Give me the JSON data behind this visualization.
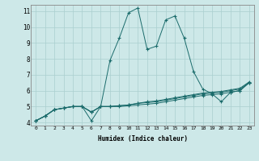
{
  "xlabel": "Humidex (Indice chaleur)",
  "ylabel": "",
  "bg_color": "#cde8e8",
  "line_color": "#1a6b6b",
  "grid_color": "#aacfcf",
  "xmin": -0.5,
  "xmax": 23.5,
  "ymin": 3.8,
  "ymax": 11.4,
  "xticks": [
    0,
    1,
    2,
    3,
    4,
    5,
    6,
    7,
    8,
    9,
    10,
    11,
    12,
    13,
    14,
    15,
    16,
    17,
    18,
    19,
    20,
    21,
    22,
    23
  ],
  "yticks": [
    4,
    5,
    6,
    7,
    8,
    9,
    10,
    11
  ],
  "series": [
    [
      4.1,
      4.4,
      4.8,
      4.9,
      5.0,
      5.0,
      4.1,
      5.0,
      7.9,
      9.3,
      10.9,
      11.2,
      8.6,
      8.8,
      10.45,
      10.7,
      9.3,
      7.2,
      6.1,
      5.8,
      5.3,
      5.9,
      6.0,
      6.5
    ],
    [
      4.1,
      4.4,
      4.8,
      4.9,
      5.0,
      5.0,
      4.65,
      5.0,
      5.0,
      5.0,
      5.05,
      5.1,
      5.15,
      5.2,
      5.3,
      5.4,
      5.5,
      5.6,
      5.7,
      5.75,
      5.8,
      5.9,
      6.0,
      6.5
    ],
    [
      4.1,
      4.4,
      4.8,
      4.9,
      5.0,
      5.0,
      4.65,
      5.0,
      5.0,
      5.05,
      5.1,
      5.2,
      5.25,
      5.3,
      5.4,
      5.5,
      5.6,
      5.7,
      5.8,
      5.85,
      5.9,
      6.0,
      6.1,
      6.5
    ],
    [
      4.1,
      4.4,
      4.8,
      4.9,
      5.0,
      5.0,
      4.65,
      5.0,
      5.0,
      5.05,
      5.1,
      5.2,
      5.3,
      5.35,
      5.45,
      5.55,
      5.65,
      5.75,
      5.85,
      5.9,
      5.95,
      6.05,
      6.15,
      6.55
    ]
  ]
}
